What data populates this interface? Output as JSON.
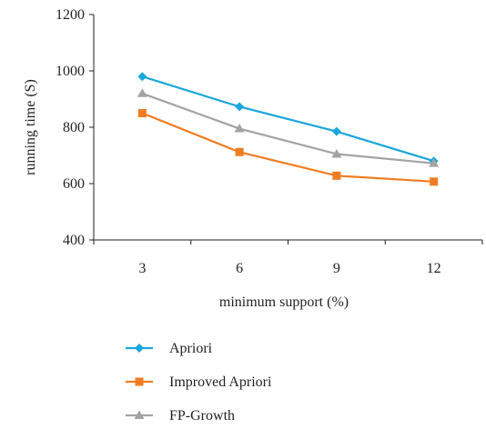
{
  "chart_data": {
    "type": "line",
    "title": "",
    "xlabel": "minimum support (%)",
    "ylabel": "running time (S)",
    "categories": [
      "3",
      "6",
      "9",
      "12"
    ],
    "ylim": [
      400,
      1200
    ],
    "yticks": [
      400,
      600,
      800,
      1000,
      1200
    ],
    "grid": false,
    "legend_position": "bottom",
    "series": [
      {
        "name": "Apriori",
        "color": "#1aa6dc",
        "marker": "diamond",
        "values": [
          980,
          873,
          785,
          680
        ]
      },
      {
        "name": "Improved Apriori",
        "color": "#f07d22",
        "marker": "square",
        "values": [
          850,
          712,
          628,
          607
        ]
      },
      {
        "name": "FP-Growth",
        "color": "#a3a3a3",
        "marker": "triangle",
        "values": [
          920,
          795,
          705,
          672
        ]
      }
    ]
  }
}
